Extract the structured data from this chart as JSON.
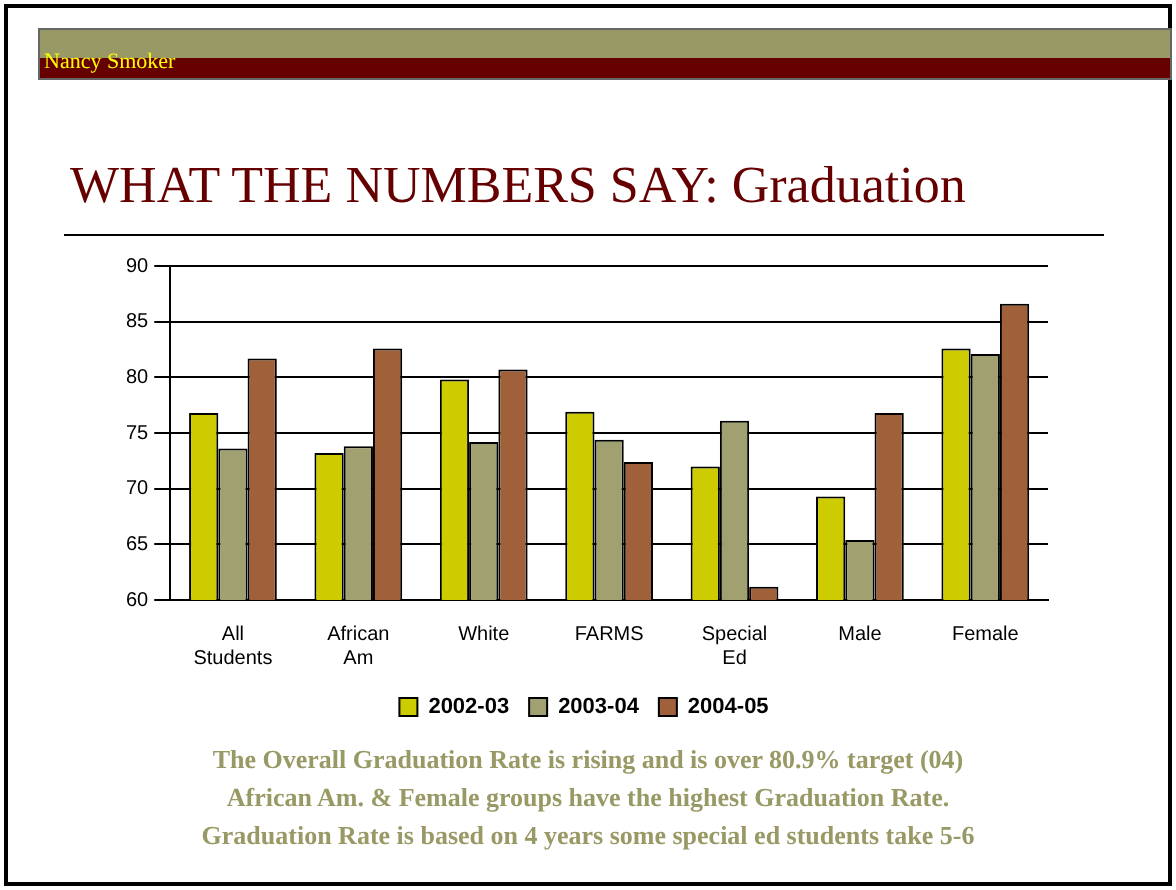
{
  "chart_data": {
    "type": "bar",
    "title": "WHAT THE NUMBERS SAY: Graduation",
    "categories": [
      "All Students",
      "African Am",
      "White",
      "FARMS",
      "Special Ed",
      "Male",
      "Female"
    ],
    "series": [
      {
        "name": "2002-03",
        "color": "#cccc00",
        "values": [
          76.8,
          73.2,
          79.8,
          76.9,
          72.0,
          69.3,
          82.6
        ]
      },
      {
        "name": "2003-04",
        "color": "#a0a070",
        "values": [
          73.6,
          73.8,
          74.2,
          74.4,
          76.1,
          65.4,
          82.1
        ]
      },
      {
        "name": "2004-05",
        "color": "#a0603a",
        "values": [
          81.7,
          82.6,
          80.7,
          72.4,
          61.2,
          76.8,
          86.6
        ]
      }
    ],
    "ylim": [
      60,
      90
    ],
    "yticks": [
      60,
      65,
      70,
      75,
      80,
      85,
      90
    ],
    "grid": "y",
    "legend": "bottom",
    "annotations": [
      "Nancy Smoker",
      "The Overall Graduation Rate is rising and is over 80.9% target (04)",
      "African Am. & Female groups have the highest Graduation Rate.",
      "Graduation Rate is based on 4 years some special ed students take 5-6"
    ]
  }
}
